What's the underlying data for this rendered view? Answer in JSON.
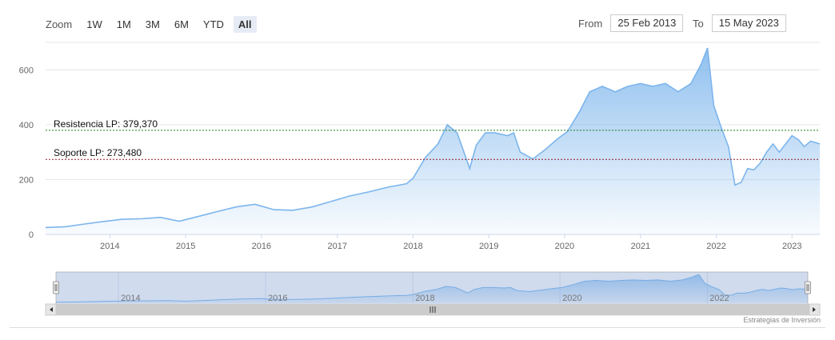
{
  "zoom": {
    "label": "Zoom",
    "buttons": [
      "1W",
      "1M",
      "3M",
      "6M",
      "YTD",
      "All"
    ],
    "selected": "All"
  },
  "range": {
    "from_label": "From",
    "from_value": "25 Feb 2013",
    "to_label": "To",
    "to_value": "15 May 2023"
  },
  "credit": "Estrategias de Inversión",
  "colors": {
    "line": "#7cb5ec",
    "fill_top": "#7cb5ec",
    "resistance": "#1a7f1a",
    "support": "#8b1a2b",
    "navigator_mask": "#6685c2"
  },
  "chart_data": {
    "type": "area",
    "title": "",
    "xlabel": "",
    "ylabel": "",
    "ylim": [
      0,
      700
    ],
    "yticks": [
      0,
      200,
      400,
      600
    ],
    "xticks": [
      "2014",
      "2015",
      "2016",
      "2017",
      "2018",
      "2019",
      "2020",
      "2021",
      "2022",
      "2023"
    ],
    "navigator_ticks": [
      "2014",
      "2016",
      "2018",
      "2020",
      "2022"
    ],
    "grid": true,
    "series": [
      {
        "name": "",
        "x": [
          "2013-02-25",
          "2013-06-01",
          "2013-09-01",
          "2013-12-01",
          "2014-03-01",
          "2014-06-01",
          "2014-09-01",
          "2014-12-01",
          "2015-03-01",
          "2015-06-01",
          "2015-09-01",
          "2015-12-01",
          "2016-03-01",
          "2016-06-01",
          "2016-09-01",
          "2016-12-01",
          "2017-03-01",
          "2017-06-01",
          "2017-09-01",
          "2017-12-01",
          "2018-01-01",
          "2018-03-01",
          "2018-05-01",
          "2018-06-15",
          "2018-08-01",
          "2018-10-01",
          "2018-11-01",
          "2018-12-15",
          "2019-02-01",
          "2019-04-01",
          "2019-05-01",
          "2019-06-01",
          "2019-08-01",
          "2019-10-01",
          "2019-12-01",
          "2020-01-15",
          "2020-03-15",
          "2020-05-01",
          "2020-07-01",
          "2020-09-01",
          "2020-11-01",
          "2021-01-01",
          "2021-03-01",
          "2021-05-01",
          "2021-07-01",
          "2021-09-01",
          "2021-10-20",
          "2021-11-20",
          "2021-12-20",
          "2022-01-20",
          "2022-03-01",
          "2022-04-01",
          "2022-05-01",
          "2022-06-01",
          "2022-07-01",
          "2022-08-01",
          "2022-09-01",
          "2022-10-01",
          "2022-11-01",
          "2023-01-01",
          "2023-02-01",
          "2023-03-01",
          "2023-04-01",
          "2023-05-15"
        ],
        "y": [
          25,
          28,
          38,
          47,
          55,
          57,
          62,
          48,
          65,
          83,
          100,
          110,
          90,
          88,
          100,
          120,
          140,
          155,
          172,
          185,
          205,
          280,
          330,
          400,
          370,
          240,
          325,
          370,
          370,
          360,
          370,
          300,
          275,
          310,
          350,
          375,
          450,
          520,
          540,
          520,
          540,
          550,
          540,
          550,
          520,
          550,
          620,
          680,
          470,
          400,
          320,
          180,
          190,
          240,
          235,
          260,
          300,
          330,
          300,
          360,
          345,
          320,
          340,
          330
        ]
      }
    ],
    "annotations": [
      {
        "label": "Resistencia LP: 379,370",
        "value": 379.37
      },
      {
        "label": "Soporte LP: 273,480",
        "value": 273.48
      }
    ]
  }
}
